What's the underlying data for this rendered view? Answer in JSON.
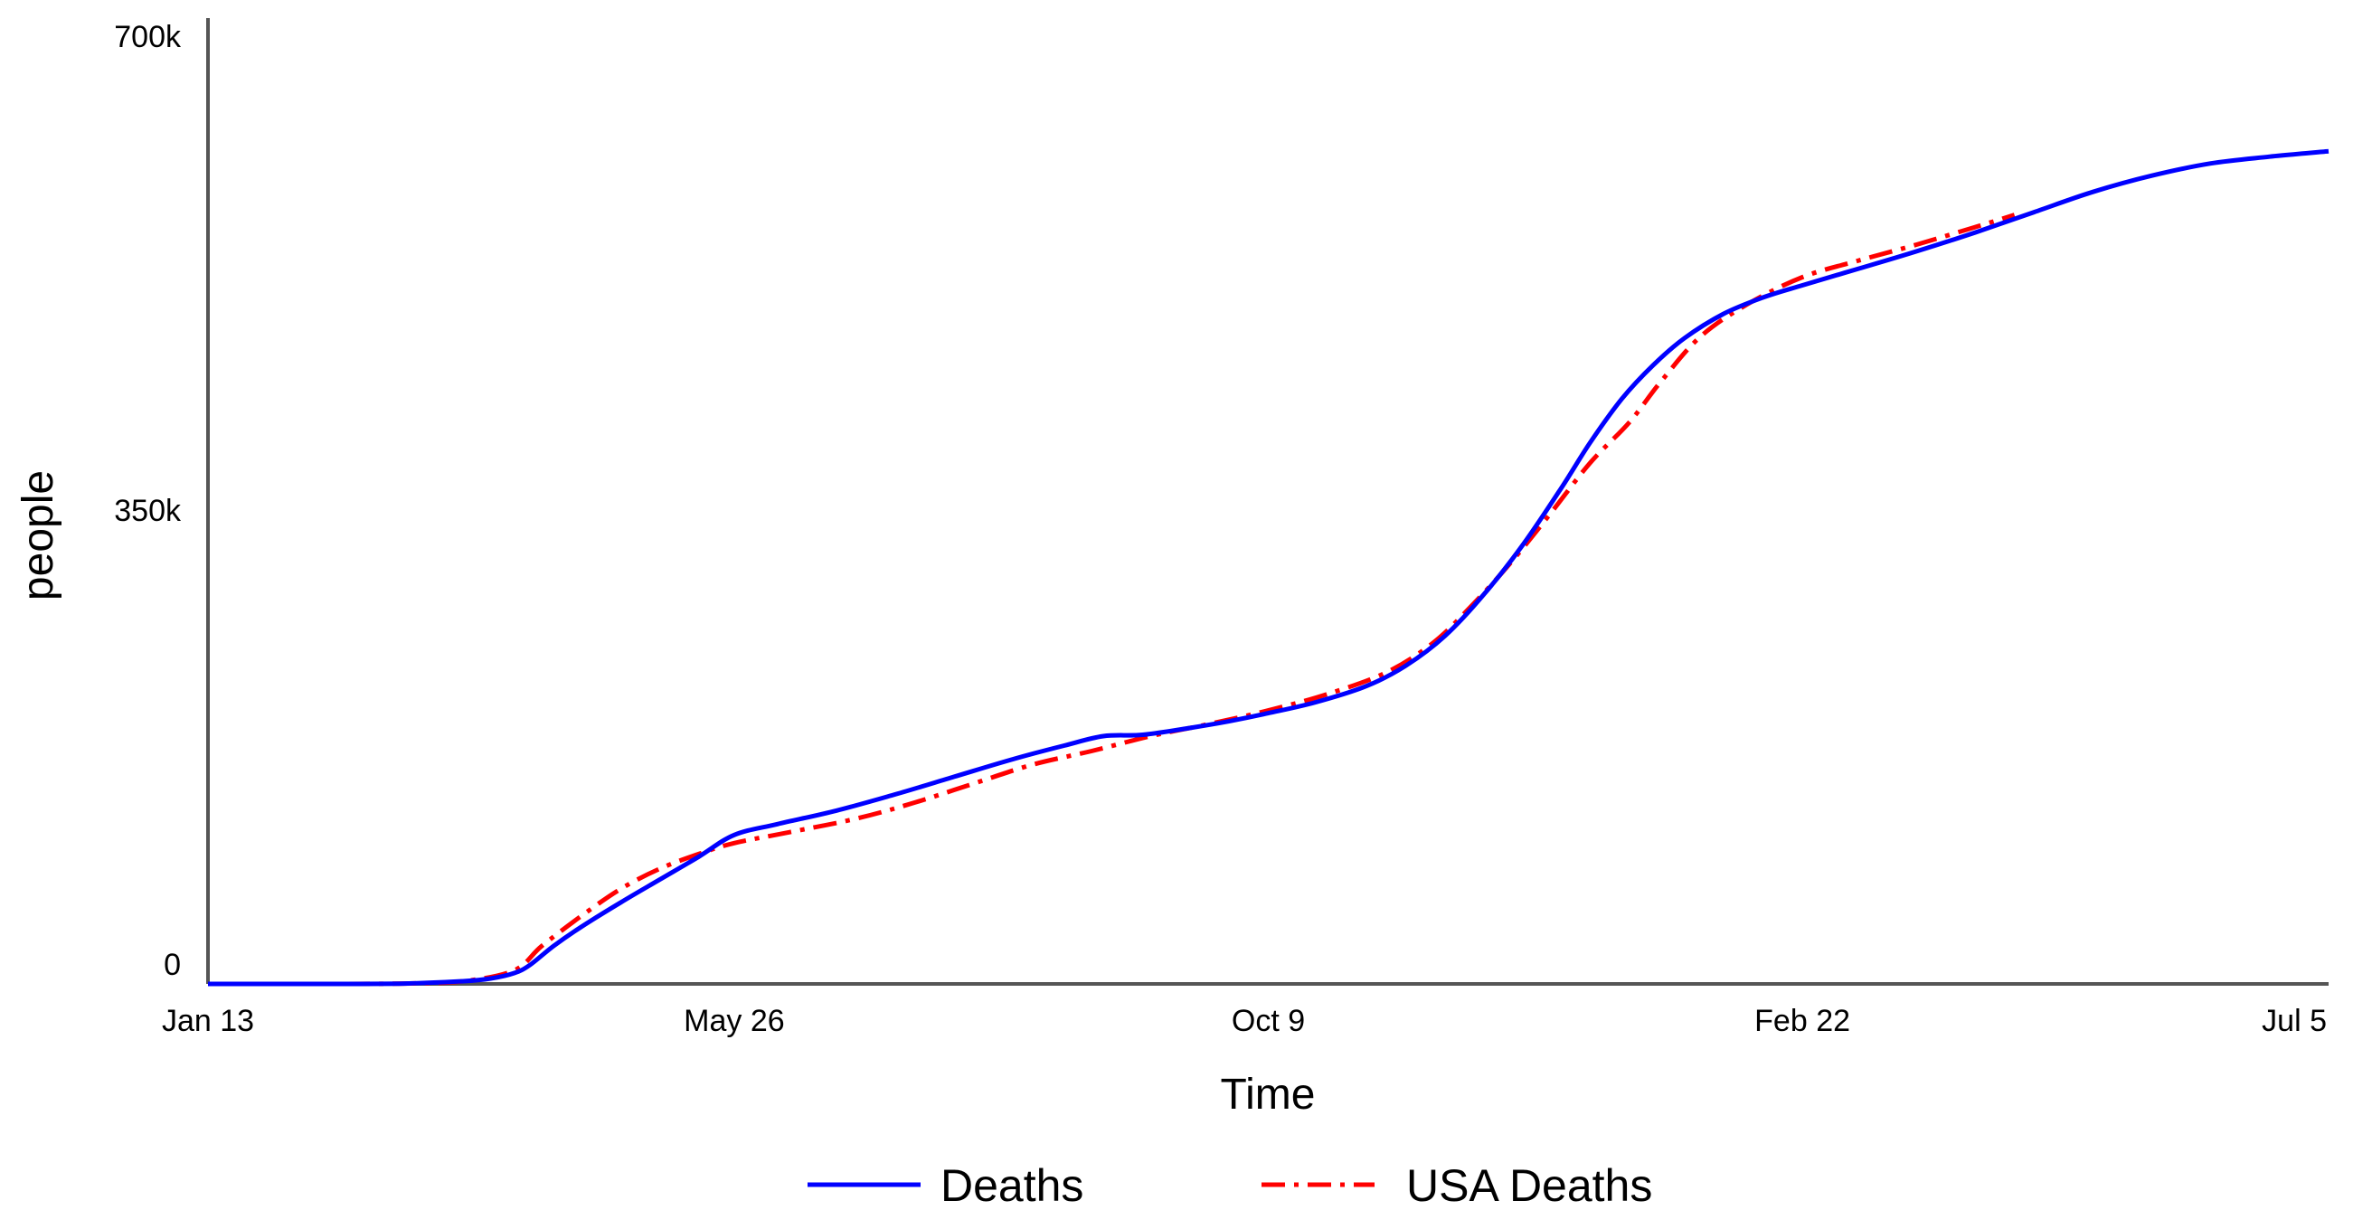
{
  "chart_data": {
    "type": "line",
    "title": "",
    "xlabel": "Time",
    "ylabel": "people",
    "x_ticks": [
      {
        "label": "Jan 13",
        "day": 0
      },
      {
        "label": "May 26",
        "day": 134
      },
      {
        "label": "Oct 9",
        "day": 270
      },
      {
        "label": "Feb 22",
        "day": 406
      },
      {
        "label": "Jul 5",
        "day": 540
      }
    ],
    "y_ticks": [
      {
        "label": "0",
        "value": 0
      },
      {
        "label": "350k",
        "value": 350000
      },
      {
        "label": "700k",
        "value": 700000
      }
    ],
    "xlim": [
      0,
      540
    ],
    "ylim": [
      0,
      700000
    ],
    "legend_position": "bottom-center",
    "series": [
      {
        "name": "Deaths",
        "color": "#0000ff",
        "style": "solid",
        "points": [
          [
            0,
            0
          ],
          [
            30,
            0
          ],
          [
            50,
            300
          ],
          [
            65,
            2000
          ],
          [
            72,
            4000
          ],
          [
            78,
            8000
          ],
          [
            82,
            14000
          ],
          [
            88,
            28000
          ],
          [
            95,
            42000
          ],
          [
            105,
            60000
          ],
          [
            115,
            77000
          ],
          [
            125,
            94000
          ],
          [
            134,
            110000
          ],
          [
            145,
            118000
          ],
          [
            160,
            128000
          ],
          [
            175,
            140000
          ],
          [
            190,
            153000
          ],
          [
            205,
            166000
          ],
          [
            218,
            176000
          ],
          [
            228,
            183000
          ],
          [
            238,
            184000
          ],
          [
            250,
            189000
          ],
          [
            260,
            194000
          ],
          [
            270,
            200000
          ],
          [
            282,
            208000
          ],
          [
            295,
            220000
          ],
          [
            305,
            235000
          ],
          [
            315,
            257000
          ],
          [
            325,
            288000
          ],
          [
            335,
            325000
          ],
          [
            345,
            368000
          ],
          [
            352,
            400000
          ],
          [
            360,
            432000
          ],
          [
            368,
            457000
          ],
          [
            376,
            477000
          ],
          [
            386,
            495000
          ],
          [
            396,
            507000
          ],
          [
            406,
            516000
          ],
          [
            420,
            528000
          ],
          [
            435,
            541000
          ],
          [
            450,
            555000
          ],
          [
            465,
            570000
          ],
          [
            480,
            585000
          ],
          [
            495,
            597000
          ],
          [
            510,
            606000
          ],
          [
            525,
            611000
          ],
          [
            540,
            615000
          ]
        ]
      },
      {
        "name": "USA Deaths",
        "color": "#ff0000",
        "style": "dash-dot",
        "points": [
          [
            0,
            0
          ],
          [
            30,
            0
          ],
          [
            50,
            300
          ],
          [
            65,
            2000
          ],
          [
            78,
            10000
          ],
          [
            85,
            28000
          ],
          [
            95,
            50000
          ],
          [
            105,
            70000
          ],
          [
            115,
            85000
          ],
          [
            125,
            96000
          ],
          [
            134,
            104000
          ],
          [
            148,
            112000
          ],
          [
            165,
            122000
          ],
          [
            180,
            134000
          ],
          [
            195,
            148000
          ],
          [
            210,
            162000
          ],
          [
            225,
            172000
          ],
          [
            240,
            183000
          ],
          [
            255,
            192000
          ],
          [
            270,
            202000
          ],
          [
            285,
            214000
          ],
          [
            300,
            230000
          ],
          [
            312,
            252000
          ],
          [
            322,
            280000
          ],
          [
            332,
            312000
          ],
          [
            342,
            348000
          ],
          [
            352,
            385000
          ],
          [
            362,
            415000
          ],
          [
            370,
            445000
          ],
          [
            380,
            478000
          ],
          [
            392,
            502000
          ],
          [
            406,
            522000
          ],
          [
            420,
            534000
          ],
          [
            435,
            546000
          ],
          [
            450,
            559000
          ],
          [
            460,
            568000
          ]
        ]
      }
    ]
  }
}
